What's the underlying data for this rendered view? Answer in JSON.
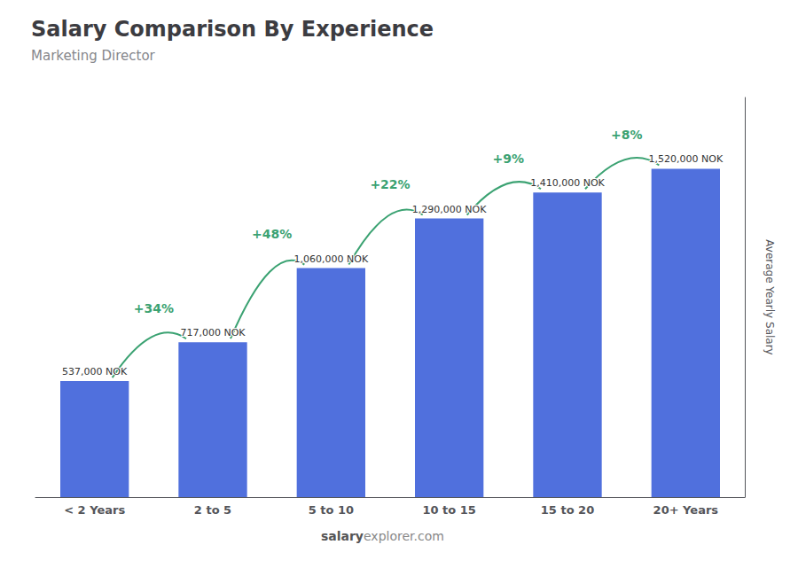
{
  "chart_data": {
    "type": "bar",
    "title": "Salary Comparison By Experience",
    "subtitle": "Marketing Director",
    "ylabel": "Average Yearly Salary",
    "footer_bold": "salary",
    "footer_regular": "explorer.com",
    "categories": [
      "< 2 Years",
      "2 to 5",
      "5 to 10",
      "10 to 15",
      "15 to 20",
      "20+ Years"
    ],
    "values": [
      537000,
      717000,
      1060000,
      1290000,
      1410000,
      1520000
    ],
    "value_labels": [
      "537,000 NOK",
      "717,000 NOK",
      "1,060,000 NOK",
      "1,290,000 NOK",
      "1,410,000 NOK",
      "1,520,000 NOK"
    ],
    "pct_labels": [
      "+34%",
      "+48%",
      "+22%",
      "+9%",
      "+8%"
    ],
    "data_labels": true,
    "ylim": [
      0,
      1850000
    ],
    "grid": false,
    "tick_labels": "x"
  }
}
